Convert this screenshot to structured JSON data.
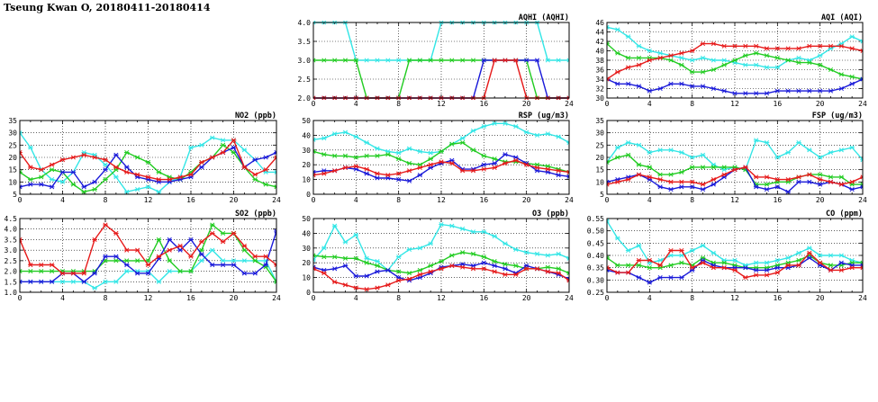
{
  "title": "Tseung Kwan O, 20180411-20180414",
  "colors": {
    "cyan": "#33e6e6",
    "green": "#22cc22",
    "blue": "#1a1ad9",
    "red": "#e61a1a"
  },
  "x_ticks": [
    "0",
    "4",
    "8",
    "12",
    "16",
    "20",
    "24"
  ],
  "chart_data": [
    {
      "id": "aqhi",
      "type": "line",
      "title": "AQHI (AQHI)",
      "xlim": [
        0,
        24
      ],
      "ylim": [
        2.0,
        4.0
      ],
      "yticks": [
        "2.0",
        "2.5",
        "3.0",
        "3.5",
        "4.0"
      ],
      "series": [
        {
          "color": "cyan",
          "values": [
            4,
            4,
            4,
            4,
            3,
            3,
            3,
            3,
            3,
            3,
            3,
            3,
            4,
            4,
            4,
            4,
            4,
            4,
            4,
            4,
            4,
            4,
            3,
            3,
            3
          ]
        },
        {
          "color": "green",
          "values": [
            3,
            3,
            3,
            3,
            3,
            2,
            2,
            2,
            2,
            3,
            3,
            3,
            3,
            3,
            3,
            3,
            3,
            3,
            3,
            3,
            3,
            2,
            2,
            2,
            2
          ]
        },
        {
          "color": "blue",
          "values": [
            2,
            2,
            2,
            2,
            2,
            2,
            2,
            2,
            2,
            2,
            2,
            2,
            2,
            2,
            2,
            2,
            3,
            3,
            3,
            3,
            3,
            3,
            2,
            2,
            2
          ]
        },
        {
          "color": "red",
          "values": [
            2,
            2,
            2,
            2,
            2,
            2,
            2,
            2,
            2,
            2,
            2,
            2,
            2,
            2,
            2,
            2,
            2,
            3,
            3,
            3,
            2,
            2,
            2,
            2,
            2
          ]
        }
      ]
    },
    {
      "id": "aqi",
      "type": "line",
      "title": "AQI (AQI)",
      "xlim": [
        0,
        24
      ],
      "ylim": [
        30,
        46
      ],
      "yticks": [
        "30",
        "32",
        "34",
        "36",
        "38",
        "40",
        "42",
        "44",
        "46"
      ],
      "series": [
        {
          "color": "cyan",
          "values": [
            45,
            44.5,
            43,
            41,
            40,
            39.5,
            39,
            38.5,
            38,
            38.5,
            38,
            38,
            37.5,
            37,
            37,
            36.5,
            36.5,
            38,
            38.5,
            38,
            39,
            40.5,
            41.5,
            43,
            42
          ]
        },
        {
          "color": "green",
          "values": [
            41.5,
            39.5,
            38.5,
            38.5,
            38.5,
            38.5,
            38,
            37,
            35.5,
            35.5,
            36,
            37,
            38,
            39,
            39.5,
            39,
            38.5,
            38,
            37.5,
            37.5,
            37,
            36,
            35,
            34.5,
            34
          ]
        },
        {
          "color": "blue",
          "values": [
            34,
            33,
            33,
            32.5,
            31.5,
            32,
            33,
            33,
            32.5,
            32.5,
            32,
            31.5,
            31,
            31,
            31,
            31,
            31.5,
            31.5,
            31.5,
            31.5,
            31.5,
            31.5,
            32,
            33,
            34
          ]
        },
        {
          "color": "red",
          "values": [
            34,
            35.5,
            36.5,
            37,
            38,
            38.5,
            39,
            39.5,
            40,
            41.5,
            41.5,
            41,
            41,
            41,
            41,
            40.5,
            40.5,
            40.5,
            40.5,
            41,
            41,
            41,
            41,
            40.5,
            40
          ]
        }
      ]
    },
    {
      "id": "no2",
      "type": "line",
      "title": "NO2 (ppb)",
      "xlim": [
        0,
        24
      ],
      "ylim": [
        5,
        35
      ],
      "yticks": [
        "5",
        "10",
        "15",
        "20",
        "25",
        "30",
        "35"
      ],
      "series": [
        {
          "color": "cyan",
          "values": [
            30,
            24,
            15,
            11,
            10,
            14,
            22,
            21,
            17,
            12,
            6,
            7,
            8,
            6,
            10,
            12,
            24,
            25,
            28,
            27,
            27,
            23,
            19,
            14,
            14
          ]
        },
        {
          "color": "green",
          "values": [
            14,
            11,
            12,
            15,
            14,
            9,
            6,
            7,
            11,
            15,
            22,
            20,
            18,
            14,
            12,
            11,
            14,
            18,
            20,
            25,
            22,
            16,
            11,
            9,
            8
          ]
        },
        {
          "color": "blue",
          "values": [
            8,
            9,
            9,
            8,
            14,
            14,
            8,
            10,
            15,
            21,
            16,
            12,
            11,
            10,
            10,
            11,
            12,
            16,
            20,
            22,
            24,
            16,
            19,
            20,
            22
          ]
        },
        {
          "color": "red",
          "values": [
            22,
            16,
            15,
            17,
            19,
            20,
            21,
            20,
            19,
            16,
            14,
            13,
            12,
            11,
            11,
            12,
            13,
            18,
            20,
            22,
            27,
            16,
            13,
            15,
            20
          ]
        }
      ]
    },
    {
      "id": "rsp",
      "type": "line",
      "title": "RSP (ug/m3)",
      "xlim": [
        0,
        24
      ],
      "ylim": [
        0,
        50
      ],
      "yticks": [
        "0",
        "10",
        "20",
        "30",
        "40",
        "50"
      ],
      "series": [
        {
          "color": "cyan",
          "values": [
            37,
            38,
            41,
            42,
            39,
            35,
            31,
            29,
            28,
            31,
            29,
            28,
            29,
            34,
            38,
            43,
            46,
            48,
            48,
            46,
            42,
            40,
            41,
            39,
            35
          ]
        },
        {
          "color": "green",
          "values": [
            29,
            27,
            26,
            26,
            25,
            26,
            26,
            27,
            24,
            21,
            20,
            24,
            29,
            34,
            35,
            30,
            26,
            24,
            22,
            22,
            21,
            20,
            19,
            17,
            15
          ]
        },
        {
          "color": "blue",
          "values": [
            15,
            16,
            16,
            18,
            17,
            14,
            11,
            11,
            10,
            9,
            13,
            18,
            21,
            23,
            17,
            17,
            20,
            21,
            27,
            25,
            21,
            16,
            15,
            13,
            12
          ]
        },
        {
          "color": "red",
          "values": [
            13,
            14,
            16,
            18,
            19,
            17,
            14,
            13,
            14,
            16,
            18,
            20,
            22,
            21,
            16,
            16,
            17,
            18,
            21,
            23,
            20,
            18,
            17,
            16,
            15
          ]
        }
      ]
    },
    {
      "id": "fsp",
      "type": "line",
      "title": "FSP (ug/m3)",
      "xlim": [
        0,
        24
      ],
      "ylim": [
        5,
        35
      ],
      "yticks": [
        "5",
        "10",
        "15",
        "20",
        "25",
        "30",
        "35"
      ],
      "series": [
        {
          "color": "cyan",
          "values": [
            18,
            24,
            26,
            25,
            22,
            23,
            23,
            22,
            20,
            21,
            17,
            15,
            16,
            15,
            27,
            26,
            20,
            22,
            26,
            23,
            20,
            22,
            23,
            24,
            19
          ]
        },
        {
          "color": "green",
          "values": [
            18,
            20,
            21,
            17,
            16,
            13,
            13,
            14,
            16,
            16,
            16,
            16,
            16,
            15,
            9,
            9,
            10,
            10,
            12,
            13,
            13,
            12,
            12,
            9,
            9
          ]
        },
        {
          "color": "blue",
          "values": [
            10,
            11,
            12,
            13,
            11,
            8,
            7,
            8,
            8,
            7,
            9,
            12,
            15,
            16,
            8,
            7,
            8,
            6,
            10,
            10,
            9,
            10,
            9,
            7,
            8
          ]
        },
        {
          "color": "red",
          "values": [
            9,
            10,
            11,
            13,
            12,
            11,
            10,
            10,
            10,
            9,
            11,
            13,
            15,
            16,
            12,
            12,
            11,
            11,
            12,
            13,
            11,
            10,
            9,
            10,
            12
          ]
        }
      ]
    },
    {
      "id": "so2",
      "type": "line",
      "title": "SO2 (ppb)",
      "xlim": [
        0,
        24
      ],
      "ylim": [
        1.0,
        4.5
      ],
      "yticks": [
        "1.0",
        "1.5",
        "2.0",
        "2.5",
        "3.0",
        "3.5",
        "4.0",
        "4.5"
      ],
      "series": [
        {
          "color": "cyan",
          "values": [
            1.5,
            1.5,
            1.5,
            1.5,
            1.5,
            1.5,
            1.5,
            1.2,
            1.5,
            1.5,
            2.0,
            2.0,
            2.0,
            1.5,
            2.0,
            2.0,
            2.0,
            2.5,
            3.0,
            2.5,
            2.5,
            2.5,
            2.5,
            2.5,
            1.5
          ]
        },
        {
          "color": "green",
          "values": [
            2.0,
            2.0,
            2.0,
            2.0,
            2.0,
            2.0,
            2.0,
            2.0,
            2.5,
            2.5,
            2.5,
            2.5,
            2.5,
            3.5,
            2.5,
            2.0,
            2.0,
            3.0,
            4.2,
            3.8,
            3.8,
            3.0,
            2.5,
            2.2,
            1.5
          ]
        },
        {
          "color": "blue",
          "values": [
            1.5,
            1.5,
            1.5,
            1.5,
            1.9,
            1.9,
            1.5,
            1.9,
            2.7,
            2.7,
            2.3,
            1.9,
            1.9,
            2.6,
            3.5,
            3.0,
            3.5,
            2.8,
            2.3,
            2.3,
            2.3,
            1.9,
            1.9,
            2.3,
            3.9
          ]
        },
        {
          "color": "red",
          "values": [
            3.5,
            2.3,
            2.3,
            2.3,
            1.9,
            1.9,
            1.9,
            3.5,
            4.2,
            3.8,
            3.0,
            3.0,
            2.3,
            2.7,
            3.0,
            3.2,
            2.7,
            3.4,
            3.8,
            3.4,
            3.8,
            3.2,
            2.7,
            2.7,
            2.3
          ]
        }
      ]
    },
    {
      "id": "o3",
      "type": "line",
      "title": "O3 (ppb)",
      "xlim": [
        0,
        24
      ],
      "ylim": [
        0,
        50
      ],
      "yticks": [
        "0",
        "10",
        "20",
        "30",
        "40",
        "50"
      ],
      "series": [
        {
          "color": "cyan",
          "values": [
            22,
            30,
            45,
            34,
            39,
            23,
            21,
            15,
            24,
            29,
            30,
            33,
            46,
            45,
            43,
            41,
            41,
            38,
            33,
            29,
            27,
            26,
            25,
            26,
            23
          ]
        },
        {
          "color": "green",
          "values": [
            25,
            24,
            24,
            23,
            23,
            20,
            18,
            15,
            14,
            13,
            15,
            18,
            21,
            25,
            27,
            26,
            24,
            21,
            19,
            18,
            16,
            16,
            17,
            16,
            13
          ]
        },
        {
          "color": "blue",
          "values": [
            17,
            15,
            16,
            18,
            11,
            11,
            14,
            15,
            10,
            8,
            10,
            13,
            17,
            18,
            19,
            18,
            20,
            18,
            16,
            13,
            18,
            16,
            14,
            12,
            9
          ]
        },
        {
          "color": "red",
          "values": [
            16,
            13,
            7,
            5,
            3,
            2,
            3,
            5,
            8,
            9,
            12,
            14,
            16,
            18,
            17,
            16,
            16,
            14,
            12,
            12,
            16,
            16,
            14,
            13,
            8
          ]
        }
      ]
    },
    {
      "id": "co",
      "type": "line",
      "title": "CO (ppm)",
      "xlim": [
        0,
        24
      ],
      "ylim": [
        0.25,
        0.55
      ],
      "yticks": [
        "0.25",
        "0.30",
        "0.35",
        "0.40",
        "0.45",
        "0.50",
        "0.55"
      ],
      "series": [
        {
          "color": "cyan",
          "values": [
            0.54,
            0.47,
            0.42,
            0.44,
            0.37,
            0.38,
            0.4,
            0.4,
            0.42,
            0.44,
            0.41,
            0.38,
            0.38,
            0.36,
            0.37,
            0.37,
            0.38,
            0.39,
            0.41,
            0.43,
            0.4,
            0.4,
            0.4,
            0.38,
            0.37
          ]
        },
        {
          "color": "green",
          "values": [
            0.39,
            0.36,
            0.36,
            0.36,
            0.35,
            0.35,
            0.36,
            0.37,
            0.36,
            0.39,
            0.37,
            0.37,
            0.36,
            0.35,
            0.35,
            0.35,
            0.36,
            0.37,
            0.38,
            0.4,
            0.37,
            0.36,
            0.36,
            0.37,
            0.37
          ]
        },
        {
          "color": "blue",
          "values": [
            0.34,
            0.33,
            0.33,
            0.31,
            0.29,
            0.31,
            0.31,
            0.31,
            0.34,
            0.38,
            0.36,
            0.35,
            0.35,
            0.35,
            0.34,
            0.34,
            0.35,
            0.35,
            0.36,
            0.39,
            0.36,
            0.34,
            0.37,
            0.36,
            0.36
          ]
        },
        {
          "color": "red",
          "values": [
            0.35,
            0.33,
            0.33,
            0.38,
            0.38,
            0.36,
            0.42,
            0.42,
            0.35,
            0.37,
            0.35,
            0.35,
            0.34,
            0.31,
            0.32,
            0.32,
            0.33,
            0.36,
            0.36,
            0.41,
            0.37,
            0.34,
            0.34,
            0.35,
            0.35
          ]
        }
      ]
    }
  ]
}
